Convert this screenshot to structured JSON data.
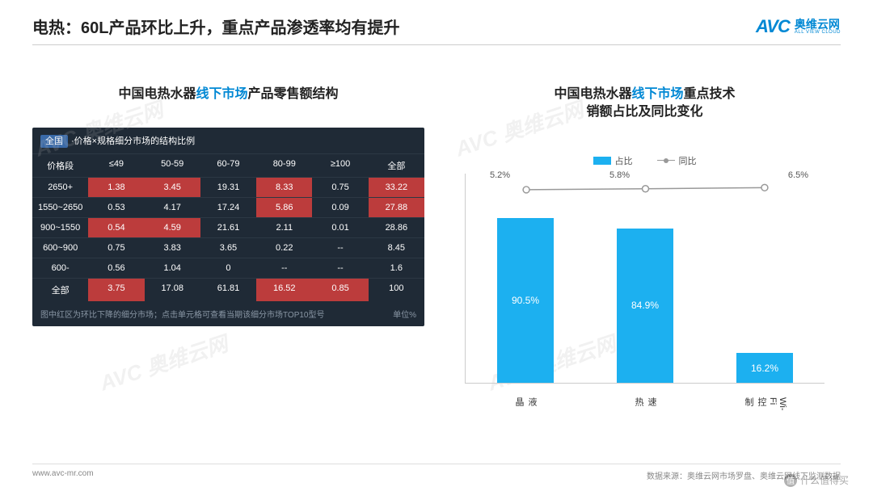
{
  "header": {
    "title": "电热：60L产品环比上升，重点产品渗透率均有提升",
    "logo_mark": "AVC",
    "logo_cn": "奥维云网",
    "logo_en": "ALL VIEW CLOUD"
  },
  "left": {
    "title_pre": "中国电热水器",
    "title_hl": "线下市场",
    "title_post": "产品零售额结构",
    "table": {
      "head_tag": "全国",
      "head_text": "·价格×规格细分市场的结构比例",
      "columns": [
        "价格段",
        "≤49",
        "50-59",
        "60-79",
        "80-99",
        "≥100",
        "全部"
      ],
      "rows": [
        {
          "cells": [
            "2650+",
            "1.38",
            "3.45",
            "19.31",
            "8.33",
            "0.75",
            "33.22"
          ],
          "red": [
            1,
            2,
            4,
            6
          ]
        },
        {
          "cells": [
            "1550~2650",
            "0.53",
            "4.17",
            "17.24",
            "5.86",
            "0.09",
            "27.88"
          ],
          "red": [
            4,
            6
          ]
        },
        {
          "cells": [
            "900~1550",
            "0.54",
            "4.59",
            "21.61",
            "2.11",
            "0.01",
            "28.86"
          ],
          "red": [
            1,
            2
          ]
        },
        {
          "cells": [
            "600~900",
            "0.75",
            "3.83",
            "3.65",
            "0.22",
            "--",
            "8.45"
          ],
          "red": []
        },
        {
          "cells": [
            "600-",
            "0.56",
            "1.04",
            "0",
            "--",
            "--",
            "1.6"
          ],
          "red": []
        },
        {
          "cells": [
            "全部",
            "3.75",
            "17.08",
            "61.81",
            "16.52",
            "0.85",
            "100"
          ],
          "red": [
            1,
            4,
            5
          ]
        }
      ],
      "foot_left": "图中红区为环比下降的细分市场；点击单元格可查看当期该细分市场TOP10型号",
      "foot_right": "单位%"
    }
  },
  "right": {
    "title_pre": "中国电热水器",
    "title_hl": "线下市场",
    "title_post": "重点技术\n销额占比及同比变化",
    "chart": {
      "legend_bar": "占比",
      "legend_line": "同比",
      "bar_color": "#1cb0f0",
      "line_color": "#999999",
      "categories": [
        "液晶",
        "速热",
        "Wi-Fi控制"
      ],
      "bar_values": [
        90.5,
        84.9,
        16.2
      ],
      "line_values": [
        5.2,
        5.8,
        6.5
      ],
      "ymax": 100
    }
  },
  "footer": {
    "url": "www.avc-mr.com",
    "source": "数据来源：奥维云网市场罗盘、奥维云网线下监测数据"
  },
  "watermarks": [
    "AVC 奥维云网",
    "AVC 奥维云网",
    "AVC 奥维云网",
    "AVC 奥维云网"
  ],
  "bottom_watermark": "什么值得买"
}
